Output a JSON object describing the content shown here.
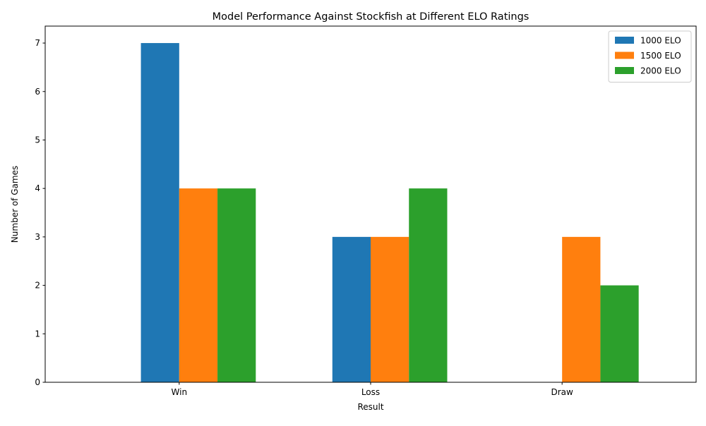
{
  "chart_data": {
    "type": "bar",
    "title": "Model Performance Against Stockfish at Different ELO Ratings",
    "xlabel": "Result",
    "ylabel": "Number of Games",
    "categories": [
      "Win",
      "Loss",
      "Draw"
    ],
    "series": [
      {
        "name": "1000 ELO",
        "values": [
          7,
          3,
          0
        ],
        "color": "#1f77b4"
      },
      {
        "name": "1500 ELO",
        "values": [
          4,
          3,
          3
        ],
        "color": "#ff7f0e"
      },
      {
        "name": "2000 ELO",
        "values": [
          4,
          4,
          2
        ],
        "color": "#2ca02c"
      }
    ],
    "ylim": [
      0,
      7.35
    ],
    "yticks": [
      0,
      1,
      2,
      3,
      4,
      5,
      6,
      7
    ],
    "grid": false,
    "legend_position": "top-right"
  }
}
